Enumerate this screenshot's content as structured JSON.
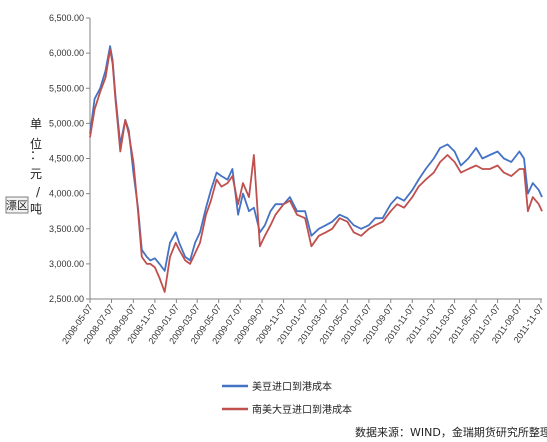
{
  "chart_data": {
    "type": "line",
    "ylabel": "单位：元/吨",
    "ylim": [
      2500,
      6500
    ],
    "yticks": [
      "6,500.00",
      "6,000.00",
      "5,500.00",
      "5,000.00",
      "4,500.00",
      "4,000.00",
      "3,500.00",
      "3,000.00",
      "2,500.00"
    ],
    "yticks_values": [
      6500,
      6000,
      5500,
      5000,
      4500,
      4000,
      3500,
      3000,
      2500
    ],
    "xticks": [
      "2008-05-07",
      "2008-07-07",
      "2008-09-07",
      "2008-11-07",
      "2009-01-07",
      "2009-03-07",
      "2009-05-07",
      "2009-07-07",
      "2009-09-07",
      "2009-11-07",
      "2010-01-07",
      "2010-03-07",
      "2010-05-07",
      "2010-07-07",
      "2010-09-07",
      "2010-11-07",
      "2011-01-07",
      "2011-03-07",
      "2011-05-07",
      "2011-07-07",
      "2011-09-07",
      "2011-11-07"
    ],
    "grid": false,
    "legend_position": "bottom",
    "series": [
      {
        "name": "美豆进口到港成本",
        "color": "#4472c4",
        "x": [
          "2008-05-07",
          "2008-05-20",
          "2008-06-05",
          "2008-06-20",
          "2008-07-03",
          "2008-07-10",
          "2008-07-18",
          "2008-08-01",
          "2008-08-15",
          "2008-08-25",
          "2008-09-07",
          "2008-09-20",
          "2008-10-01",
          "2008-10-15",
          "2008-10-25",
          "2008-11-07",
          "2008-11-20",
          "2008-12-05",
          "2008-12-20",
          "2009-01-05",
          "2009-01-15",
          "2009-02-01",
          "2009-02-15",
          "2009-03-01",
          "2009-03-15",
          "2009-04-01",
          "2009-04-15",
          "2009-05-01",
          "2009-05-15",
          "2009-06-01",
          "2009-06-15",
          "2009-07-01",
          "2009-07-15",
          "2009-08-01",
          "2009-08-15",
          "2009-09-01",
          "2009-09-15",
          "2009-10-01",
          "2009-10-15",
          "2009-11-07",
          "2009-11-25",
          "2009-12-15",
          "2010-01-07",
          "2010-01-25",
          "2010-02-15",
          "2010-03-07",
          "2010-03-25",
          "2010-04-15",
          "2010-05-07",
          "2010-05-25",
          "2010-06-15",
          "2010-07-07",
          "2010-07-25",
          "2010-08-15",
          "2010-09-07",
          "2010-09-25",
          "2010-10-15",
          "2010-11-07",
          "2010-11-25",
          "2010-12-15",
          "2011-01-07",
          "2011-01-25",
          "2011-02-15",
          "2011-03-07",
          "2011-03-25",
          "2011-04-15",
          "2011-05-07",
          "2011-05-25",
          "2011-06-15",
          "2011-07-07",
          "2011-07-25",
          "2011-08-15",
          "2011-09-07",
          "2011-09-20",
          "2011-10-01",
          "2011-10-15",
          "2011-11-01",
          "2011-11-10"
        ],
        "values": [
          4850,
          5350,
          5500,
          5750,
          6100,
          5900,
          5400,
          4700,
          5050,
          4900,
          4300,
          3800,
          3200,
          3100,
          3050,
          3080,
          3000,
          2900,
          3300,
          3450,
          3300,
          3100,
          3050,
          3300,
          3450,
          3800,
          4050,
          4300,
          4250,
          4200,
          4350,
          3700,
          4000,
          3750,
          3800,
          3450,
          3550,
          3750,
          3850,
          3850,
          3950,
          3750,
          3750,
          3400,
          3500,
          3550,
          3600,
          3700,
          3650,
          3550,
          3500,
          3550,
          3650,
          3650,
          3850,
          3950,
          3900,
          4050,
          4200,
          4350,
          4500,
          4650,
          4700,
          4600,
          4400,
          4500,
          4650,
          4500,
          4550,
          4600,
          4500,
          4450,
          4600,
          4500,
          4000,
          4150,
          4050,
          3950
        ]
      },
      {
        "name": "南美大豆进口到港成本",
        "color": "#c0504d",
        "x": [
          "2008-05-07",
          "2008-05-20",
          "2008-06-05",
          "2008-06-20",
          "2008-07-03",
          "2008-07-10",
          "2008-07-18",
          "2008-08-01",
          "2008-08-15",
          "2008-08-25",
          "2008-09-07",
          "2008-09-20",
          "2008-10-01",
          "2008-10-15",
          "2008-10-25",
          "2008-11-07",
          "2008-11-20",
          "2008-12-05",
          "2008-12-20",
          "2009-01-05",
          "2009-01-15",
          "2009-02-01",
          "2009-02-15",
          "2009-03-01",
          "2009-03-15",
          "2009-04-01",
          "2009-04-15",
          "2009-05-01",
          "2009-05-15",
          "2009-06-01",
          "2009-06-15",
          "2009-07-01",
          "2009-07-15",
          "2009-08-01",
          "2009-08-15",
          "2009-09-01",
          "2009-09-15",
          "2009-10-01",
          "2009-10-15",
          "2009-11-07",
          "2009-11-25",
          "2009-12-15",
          "2010-01-07",
          "2010-01-25",
          "2010-02-15",
          "2010-03-07",
          "2010-03-25",
          "2010-04-15",
          "2010-05-07",
          "2010-05-25",
          "2010-06-15",
          "2010-07-07",
          "2010-07-25",
          "2010-08-15",
          "2010-09-07",
          "2010-09-25",
          "2010-10-15",
          "2010-11-07",
          "2010-11-25",
          "2010-12-15",
          "2011-01-07",
          "2011-01-25",
          "2011-02-15",
          "2011-03-07",
          "2011-03-25",
          "2011-04-15",
          "2011-05-07",
          "2011-05-25",
          "2011-06-15",
          "2011-07-07",
          "2011-07-25",
          "2011-08-15",
          "2011-09-07",
          "2011-09-20",
          "2011-10-01",
          "2011-10-15",
          "2011-11-01",
          "2011-11-10"
        ],
        "values": [
          4800,
          5200,
          5450,
          5650,
          6050,
          5850,
          5350,
          4600,
          5050,
          4850,
          4450,
          3750,
          3100,
          3000,
          3000,
          2950,
          2800,
          2600,
          3100,
          3300,
          3200,
          3050,
          3000,
          3150,
          3300,
          3700,
          3900,
          4200,
          4100,
          4150,
          4250,
          3850,
          4150,
          3950,
          4550,
          3250,
          3400,
          3550,
          3700,
          3850,
          3900,
          3700,
          3650,
          3250,
          3400,
          3450,
          3500,
          3650,
          3600,
          3450,
          3400,
          3500,
          3550,
          3600,
          3750,
          3850,
          3800,
          3950,
          4100,
          4200,
          4300,
          4450,
          4550,
          4450,
          4300,
          4350,
          4400,
          4350,
          4350,
          4400,
          4300,
          4250,
          4350,
          4350,
          3750,
          3950,
          3850,
          3750
        ]
      }
    ]
  },
  "source_note": "数据来源：WIND，金瑞期货研究所整理",
  "stamp_text": "漂区"
}
